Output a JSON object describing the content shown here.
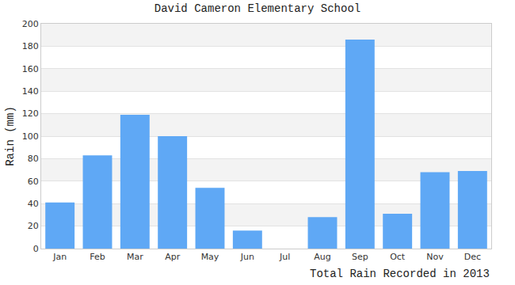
{
  "chart_data": {
    "type": "bar",
    "title": "David Cameron Elementary School",
    "y_label": "Rain (mm)",
    "x_label": "Total Rain Recorded in 2013",
    "categories": [
      "Jan",
      "Feb",
      "Mar",
      "Apr",
      "May",
      "Jun",
      "Jul",
      "Aug",
      "Sep",
      "Oct",
      "Nov",
      "Dec"
    ],
    "values": [
      41,
      83,
      119,
      100,
      54,
      16,
      0,
      28,
      186,
      31,
      68,
      69
    ],
    "color": "#5fa8f5",
    "ylim": [
      0,
      200
    ],
    "yticks": [
      0,
      20,
      40,
      60,
      80,
      100,
      120,
      140,
      160,
      180,
      200
    ],
    "grid": true
  }
}
